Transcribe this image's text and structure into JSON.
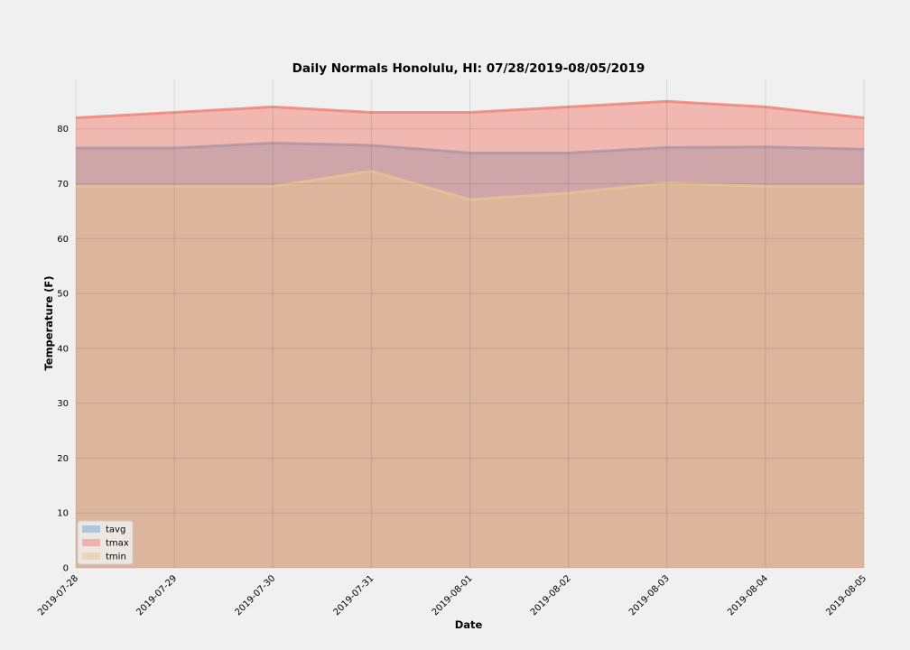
{
  "chart_data": {
    "type": "area",
    "title": "Daily Normals Honolulu, HI: 07/28/2019-08/05/2019",
    "xlabel": "Date",
    "ylabel": "Temperature (F)",
    "ylim": [
      0,
      89
    ],
    "yticks": [
      0,
      10,
      20,
      30,
      40,
      50,
      60,
      70,
      80
    ],
    "grid": true,
    "stacked": false,
    "legend_position": "lower-left",
    "x": [
      "2019-07-28",
      "2019-07-29",
      "2019-07-30",
      "2019-07-31",
      "2019-08-01",
      "2019-08-02",
      "2019-08-03",
      "2019-08-04",
      "2019-08-05"
    ],
    "series": [
      {
        "name": "tavg",
        "color": "#6aa8d8",
        "values": [
          76.5,
          76.5,
          77.4,
          77.0,
          75.6,
          75.6,
          76.6,
          76.7,
          76.3
        ]
      },
      {
        "name": "tmax",
        "color": "#f08070",
        "values": [
          82.0,
          83.0,
          84.0,
          83.0,
          83.0,
          84.0,
          85.0,
          84.0,
          82.0
        ]
      },
      {
        "name": "tmin",
        "color": "#e8c48e",
        "values": [
          69.5,
          69.5,
          69.5,
          72.3,
          67.1,
          68.3,
          70.1,
          69.5,
          69.5
        ]
      }
    ]
  }
}
